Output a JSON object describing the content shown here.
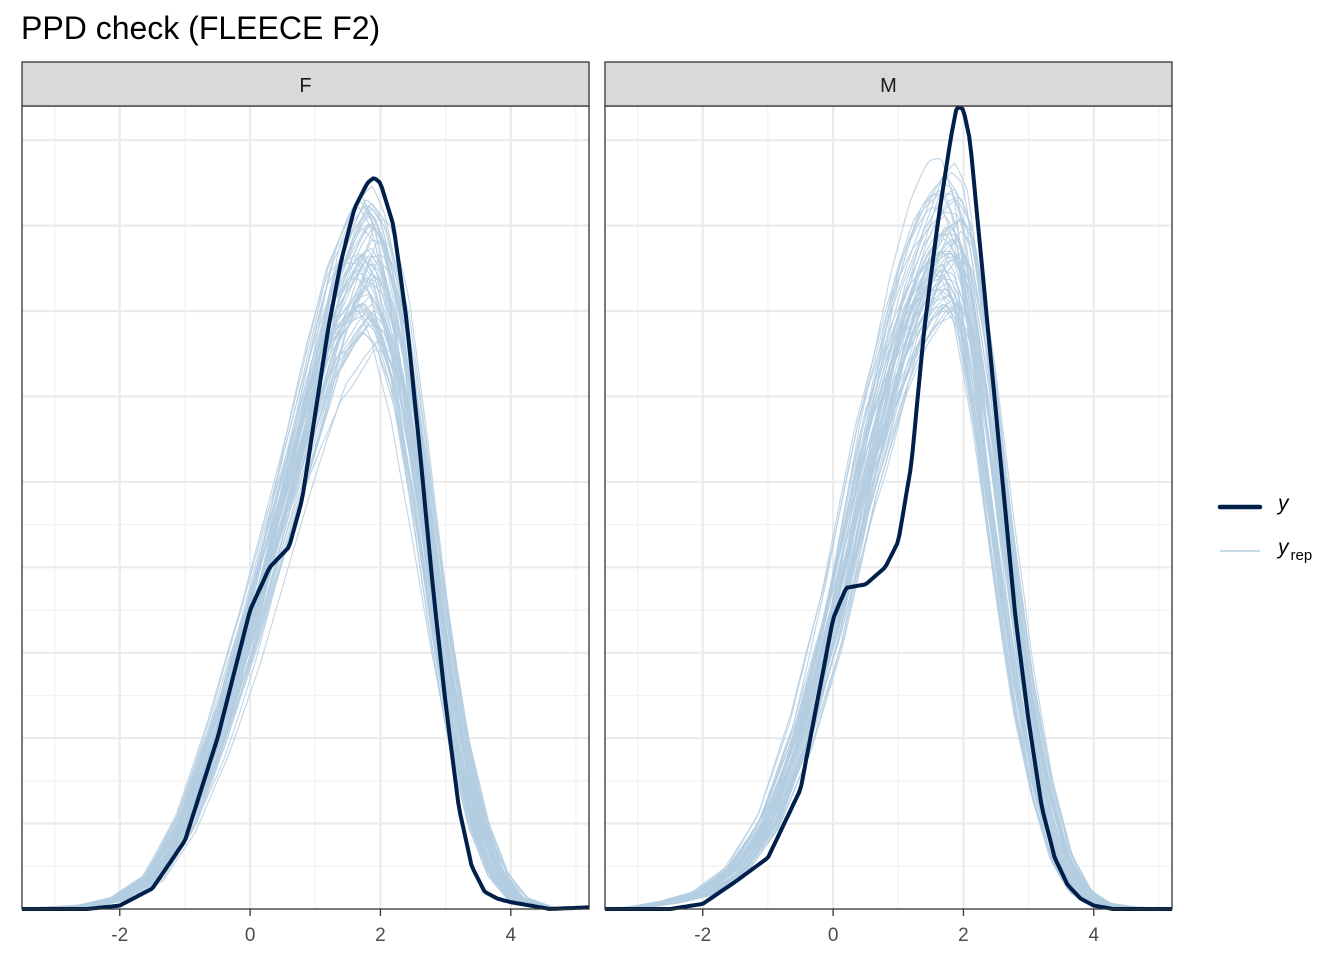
{
  "title": "PPD check (FLEECE F2)",
  "colors": {
    "observed": "#011f4b",
    "replicated": "#b3cde0",
    "grid_major": "#ebebeb",
    "grid_minor": "#f2f2f2",
    "strip_fill": "#d9d9d9",
    "panel_border": "#333333"
  },
  "legend": {
    "placement": "right",
    "items": [
      {
        "key": "y",
        "label": "y",
        "sub": ""
      },
      {
        "key": "yrep",
        "label": "y",
        "sub": "rep"
      }
    ]
  },
  "chart_data": {
    "type": "line",
    "subtype": "density-overlay",
    "title": "PPD check (FLEECE F2)",
    "xlabel": "",
    "ylabel": "",
    "xlim": [
      -3.5,
      5.2
    ],
    "ylim": [
      0,
      0.47
    ],
    "x_ticks": [
      -2,
      0,
      2,
      4
    ],
    "y_tick_labels": false,
    "grid": true,
    "legend_position": "right",
    "n_replicates": 60,
    "panels": [
      {
        "facet": "F",
        "y": {
          "x": [
            -3.5,
            -2.5,
            -2.0,
            -1.5,
            -1.0,
            -0.5,
            0.0,
            0.3,
            0.6,
            0.8,
            1.0,
            1.2,
            1.4,
            1.6,
            1.8,
            1.9,
            2.0,
            2.2,
            2.4,
            2.6,
            2.8,
            3.0,
            3.2,
            3.4,
            3.6,
            3.8,
            4.0,
            4.3,
            4.6,
            5.2
          ],
          "y": [
            0.0,
            0.0,
            0.002,
            0.012,
            0.04,
            0.1,
            0.175,
            0.2,
            0.212,
            0.24,
            0.29,
            0.34,
            0.38,
            0.41,
            0.425,
            0.428,
            0.425,
            0.4,
            0.345,
            0.27,
            0.19,
            0.12,
            0.06,
            0.025,
            0.01,
            0.006,
            0.004,
            0.002,
            0.0,
            0.001
          ]
        },
        "yrep_mean": {
          "x": [
            -3.5,
            -3.0,
            -2.5,
            -2.0,
            -1.5,
            -1.0,
            -0.5,
            0.0,
            0.5,
            1.0,
            1.3,
            1.6,
            1.8,
            2.0,
            2.3,
            2.6,
            2.9,
            3.2,
            3.5,
            3.8,
            4.1,
            4.5,
            5.2
          ],
          "y": [
            0.0,
            0.001,
            0.002,
            0.006,
            0.018,
            0.05,
            0.1,
            0.16,
            0.23,
            0.3,
            0.34,
            0.36,
            0.37,
            0.36,
            0.32,
            0.25,
            0.17,
            0.1,
            0.05,
            0.02,
            0.006,
            0.001,
            0.0
          ]
        }
      },
      {
        "facet": "M",
        "y": {
          "x": [
            -3.5,
            -2.5,
            -2.0,
            -1.5,
            -1.0,
            -0.5,
            -0.2,
            0.0,
            0.2,
            0.5,
            0.8,
            1.0,
            1.2,
            1.4,
            1.6,
            1.8,
            1.9,
            2.0,
            2.1,
            2.2,
            2.4,
            2.6,
            2.8,
            3.0,
            3.2,
            3.4,
            3.6,
            3.8,
            4.0,
            4.3,
            5.2
          ],
          "y": [
            0.0,
            0.0,
            0.003,
            0.016,
            0.03,
            0.07,
            0.13,
            0.17,
            0.188,
            0.19,
            0.2,
            0.215,
            0.26,
            0.34,
            0.4,
            0.45,
            0.47,
            0.468,
            0.45,
            0.41,
            0.33,
            0.25,
            0.17,
            0.11,
            0.06,
            0.03,
            0.014,
            0.006,
            0.002,
            0.0,
            0.0
          ]
        },
        "yrep_mean": {
          "x": [
            -3.5,
            -3.0,
            -2.5,
            -2.0,
            -1.5,
            -1.0,
            -0.5,
            0.0,
            0.5,
            1.0,
            1.3,
            1.6,
            1.8,
            2.0,
            2.3,
            2.6,
            2.9,
            3.2,
            3.5,
            3.8,
            4.1,
            4.5,
            5.2
          ],
          "y": [
            0.0,
            0.001,
            0.004,
            0.009,
            0.022,
            0.05,
            0.1,
            0.17,
            0.26,
            0.33,
            0.36,
            0.38,
            0.385,
            0.37,
            0.3,
            0.21,
            0.13,
            0.07,
            0.03,
            0.01,
            0.003,
            0.001,
            0.0
          ]
        }
      }
    ]
  }
}
